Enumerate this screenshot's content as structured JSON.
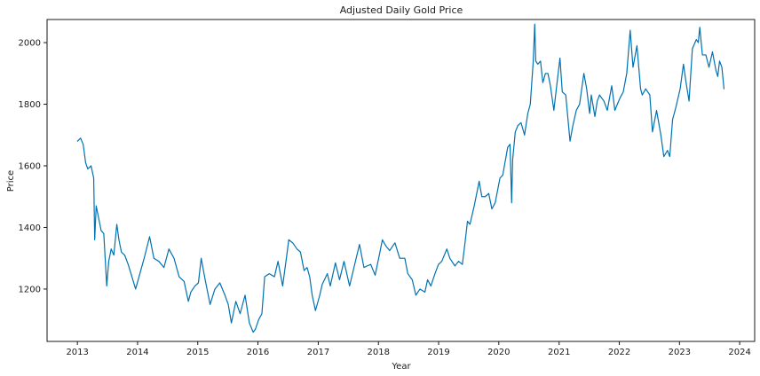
{
  "chart_data": {
    "type": "line",
    "title": "Adjusted Daily Gold Price",
    "xlabel": "Year",
    "ylabel": "Price",
    "x_ticks": [
      "2013",
      "2014",
      "2015",
      "2016",
      "2017",
      "2018",
      "2019",
      "2020",
      "2021",
      "2022",
      "2023",
      "2024"
    ],
    "y_ticks": [
      1200,
      1400,
      1600,
      1800,
      2000
    ],
    "xlim": [
      "2012-07-01",
      "2024-04-01"
    ],
    "ylim": [
      1030,
      2075
    ],
    "grid": false,
    "line_color": "#0072b2",
    "series": [
      {
        "x": [
          "2013-01-02",
          "2013-01-20",
          "2013-02-05",
          "2013-02-20",
          "2013-03-05",
          "2013-03-25",
          "2013-04-10",
          "2013-04-16",
          "2013-04-25",
          "2013-05-10",
          "2013-05-25",
          "2013-06-10",
          "2013-06-28",
          "2013-07-10",
          "2013-07-25",
          "2013-08-10",
          "2013-08-28",
          "2013-09-10",
          "2013-09-25",
          "2013-10-15",
          "2013-11-05",
          "2013-11-25",
          "2013-12-20",
          "2014-01-15",
          "2014-02-10",
          "2014-03-15",
          "2014-04-10",
          "2014-05-10",
          "2014-06-10",
          "2014-07-10",
          "2014-08-10",
          "2014-09-10",
          "2014-10-10",
          "2014-11-05",
          "2014-11-20",
          "2014-12-15",
          "2015-01-05",
          "2015-01-22",
          "2015-02-15",
          "2015-03-17",
          "2015-04-15",
          "2015-05-15",
          "2015-06-15",
          "2015-07-05",
          "2015-07-24",
          "2015-08-20",
          "2015-09-15",
          "2015-10-15",
          "2015-11-10",
          "2015-12-03",
          "2015-12-17",
          "2016-01-05",
          "2016-01-25",
          "2016-02-11",
          "2016-03-10",
          "2016-04-10",
          "2016-05-02",
          "2016-05-30",
          "2016-06-24",
          "2016-07-06",
          "2016-07-30",
          "2016-08-25",
          "2016-09-15",
          "2016-10-07",
          "2016-10-25",
          "2016-11-10",
          "2016-11-25",
          "2016-12-15",
          "2017-01-10",
          "2017-01-25",
          "2017-02-25",
          "2017-03-15",
          "2017-04-15",
          "2017-05-10",
          "2017-06-06",
          "2017-07-10",
          "2017-08-10",
          "2017-09-08",
          "2017-10-05",
          "2017-10-25",
          "2017-11-15",
          "2017-12-12",
          "2018-01-10",
          "2018-01-25",
          "2018-02-15",
          "2018-03-10",
          "2018-04-11",
          "2018-05-10",
          "2018-06-10",
          "2018-06-28",
          "2018-07-25",
          "2018-08-16",
          "2018-09-10",
          "2018-10-10",
          "2018-10-26",
          "2018-11-15",
          "2018-12-10",
          "2018-12-31",
          "2019-01-20",
          "2019-02-20",
          "2019-03-10",
          "2019-04-10",
          "2019-05-02",
          "2019-05-25",
          "2019-06-10",
          "2019-06-25",
          "2019-07-10",
          "2019-08-05",
          "2019-08-20",
          "2019-09-04",
          "2019-09-20",
          "2019-10-10",
          "2019-11-01",
          "2019-11-20",
          "2019-12-10",
          "2020-01-08",
          "2020-01-25",
          "2020-02-24",
          "2020-03-09",
          "2020-03-19",
          "2020-03-25",
          "2020-04-10",
          "2020-04-25",
          "2020-05-15",
          "2020-06-05",
          "2020-06-25",
          "2020-07-10",
          "2020-07-28",
          "2020-08-06",
          "2020-08-12",
          "2020-08-25",
          "2020-09-10",
          "2020-09-24",
          "2020-10-10",
          "2020-10-25",
          "2020-11-09",
          "2020-11-30",
          "2020-12-15",
          "2021-01-06",
          "2021-01-20",
          "2021-02-10",
          "2021-03-08",
          "2021-03-25",
          "2021-04-15",
          "2021-05-05",
          "2021-05-31",
          "2021-06-17",
          "2021-07-05",
          "2021-07-15",
          "2021-08-06",
          "2021-08-20",
          "2021-09-03",
          "2021-09-30",
          "2021-10-20",
          "2021-11-16",
          "2021-12-05",
          "2021-12-20",
          "2022-01-05",
          "2022-01-25",
          "2022-02-15",
          "2022-03-08",
          "2022-03-25",
          "2022-04-18",
          "2022-05-10",
          "2022-05-20",
          "2022-06-10",
          "2022-07-05",
          "2022-07-21",
          "2022-08-15",
          "2022-09-10",
          "2022-09-28",
          "2022-10-20",
          "2022-11-03",
          "2022-11-20",
          "2022-12-10",
          "2023-01-05",
          "2023-01-25",
          "2023-02-10",
          "2023-02-28",
          "2023-03-20",
          "2023-04-13",
          "2023-04-25",
          "2023-05-04",
          "2023-05-20",
          "2023-06-10",
          "2023-06-29",
          "2023-07-20",
          "2023-08-10",
          "2023-08-21",
          "2023-09-01",
          "2023-09-15",
          "2023-09-28"
        ],
        "values": [
          1680,
          1690,
          1670,
          1610,
          1590,
          1600,
          1560,
          1360,
          1470,
          1430,
          1390,
          1380,
          1210,
          1290,
          1330,
          1310,
          1410,
          1360,
          1320,
          1310,
          1280,
          1245,
          1200,
          1250,
          1300,
          1370,
          1300,
          1290,
          1270,
          1330,
          1300,
          1240,
          1225,
          1160,
          1190,
          1210,
          1220,
          1300,
          1230,
          1150,
          1200,
          1220,
          1180,
          1150,
          1090,
          1160,
          1120,
          1180,
          1090,
          1060,
          1070,
          1100,
          1120,
          1240,
          1250,
          1240,
          1290,
          1210,
          1310,
          1360,
          1350,
          1330,
          1320,
          1260,
          1270,
          1240,
          1180,
          1130,
          1180,
          1215,
          1250,
          1210,
          1285,
          1230,
          1290,
          1210,
          1280,
          1345,
          1270,
          1275,
          1280,
          1245,
          1320,
          1360,
          1340,
          1325,
          1350,
          1300,
          1300,
          1250,
          1230,
          1180,
          1200,
          1190,
          1230,
          1210,
          1250,
          1280,
          1290,
          1330,
          1300,
          1275,
          1290,
          1280,
          1350,
          1420,
          1410,
          1470,
          1510,
          1550,
          1500,
          1500,
          1510,
          1460,
          1480,
          1560,
          1570,
          1660,
          1670,
          1480,
          1620,
          1710,
          1730,
          1740,
          1700,
          1770,
          1800,
          1940,
          2060,
          1940,
          1930,
          1940,
          1870,
          1900,
          1900,
          1860,
          1780,
          1850,
          1950,
          1840,
          1830,
          1680,
          1730,
          1780,
          1800,
          1900,
          1850,
          1770,
          1830,
          1760,
          1810,
          1830,
          1810,
          1780,
          1860,
          1780,
          1800,
          1820,
          1840,
          1900,
          2040,
          1920,
          1990,
          1850,
          1830,
          1850,
          1830,
          1710,
          1780,
          1700,
          1630,
          1650,
          1630,
          1750,
          1790,
          1850,
          1930,
          1870,
          1810,
          1980,
          2010,
          2000,
          2050,
          1960,
          1960,
          1920,
          1970,
          1910,
          1890,
          1940,
          1920,
          1850
        ]
      }
    ]
  }
}
